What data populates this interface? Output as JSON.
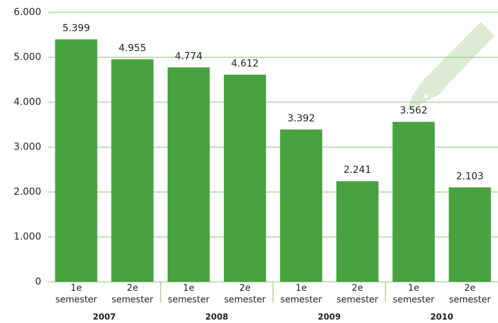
{
  "chart_data": {
    "type": "bar",
    "categories": [
      "1e semester",
      "2e semester",
      "1e semester",
      "2e semester",
      "1e semester",
      "2e semester",
      "1e semester",
      "2e semester"
    ],
    "groups": [
      "2007",
      "2008",
      "2009",
      "2010"
    ],
    "values": [
      5399,
      4955,
      4774,
      4612,
      3392,
      2241,
      3562,
      2103
    ],
    "value_labels": [
      "5.399",
      "4.955",
      "4.774",
      "4.612",
      "3.392",
      "2.241",
      "3.562",
      "2.103"
    ],
    "color": "#48a23f",
    "ylim": [
      0,
      6000
    ],
    "yticks": [
      0,
      {
        "value": 1000,
        "label": "1.000"
      },
      {
        "value": 2000,
        "label": "2.000"
      },
      {
        "value": 3000,
        "label": "3.000"
      },
      {
        "value": 4000,
        "label": "4.000"
      },
      {
        "value": 5000,
        "label": "5.000"
      },
      {
        "value": 6000,
        "label": "6.000"
      }
    ],
    "grid": true
  }
}
